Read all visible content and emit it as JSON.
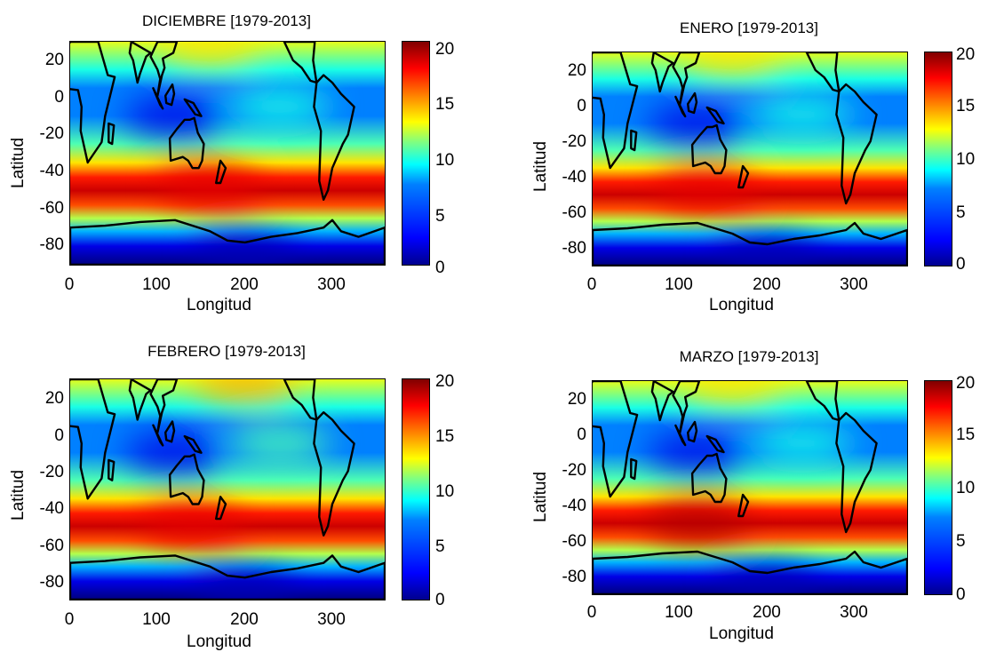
{
  "colorbar_ticks": [
    "0",
    "5",
    "10",
    "15",
    "20"
  ],
  "chart_data": [
    {
      "type": "heatmap",
      "title": "DICIEMBRE [1979-2013]",
      "xlabel": "Longitud",
      "ylabel": "Latitud",
      "xlim": [
        0,
        360
      ],
      "ylim": [
        -90,
        30
      ],
      "x_ticks": [
        "0",
        "100",
        "200",
        "300"
      ],
      "y_ticks": [
        "20",
        "0",
        "-20",
        "-40",
        "-60",
        "-80"
      ],
      "colorbar_range": [
        0,
        20
      ],
      "colormap": "jet",
      "features": [
        {
          "lon": 120,
          "lat": -10,
          "value": 2
        },
        {
          "lon": 240,
          "lat": -5,
          "value": 8
        },
        {
          "lon": 160,
          "lat": -48,
          "value": 18
        },
        {
          "lon": 160,
          "lat": 28,
          "value": 13
        },
        {
          "lon": 200,
          "lat": -85,
          "value": 1
        }
      ]
    },
    {
      "type": "heatmap",
      "title": "ENERO [1979-2013]",
      "xlabel": "Longitud",
      "ylabel": "Latitud",
      "xlim": [
        0,
        360
      ],
      "ylim": [
        -90,
        30
      ],
      "x_ticks": [
        "0",
        "100",
        "200",
        "300"
      ],
      "y_ticks": [
        "20",
        "0",
        "-20",
        "-40",
        "-60",
        "-80"
      ],
      "colorbar_range": [
        0,
        20
      ],
      "colormap": "jet",
      "features": [
        {
          "lon": 120,
          "lat": -10,
          "value": 2
        },
        {
          "lon": 240,
          "lat": -5,
          "value": 8
        },
        {
          "lon": 130,
          "lat": -48,
          "value": 18
        },
        {
          "lon": 160,
          "lat": 28,
          "value": 13
        },
        {
          "lon": 200,
          "lat": -85,
          "value": 1
        }
      ]
    },
    {
      "type": "heatmap",
      "title": "FEBRERO [1979-2013]",
      "xlabel": "Longitud",
      "ylabel": "Latitud",
      "xlim": [
        0,
        360
      ],
      "ylim": [
        -90,
        30
      ],
      "x_ticks": [
        "0",
        "100",
        "200",
        "300"
      ],
      "y_ticks": [
        "20",
        "0",
        "-20",
        "-40",
        "-60",
        "-80"
      ],
      "colorbar_range": [
        0,
        20
      ],
      "colormap": "jet",
      "features": [
        {
          "lon": 120,
          "lat": -10,
          "value": 2
        },
        {
          "lon": 240,
          "lat": -5,
          "value": 9
        },
        {
          "lon": 140,
          "lat": -50,
          "value": 18
        },
        {
          "lon": 200,
          "lat": 28,
          "value": 14
        },
        {
          "lon": 200,
          "lat": -85,
          "value": 1
        }
      ]
    },
    {
      "type": "heatmap",
      "title": "MARZO [1979-2013]",
      "xlabel": "Longitud",
      "ylabel": "Latitud",
      "xlim": [
        0,
        360
      ],
      "ylim": [
        -90,
        30
      ],
      "x_ticks": [
        "0",
        "100",
        "200",
        "300"
      ],
      "y_ticks": [
        "20",
        "0",
        "-20",
        "-40",
        "-60",
        "-80"
      ],
      "colorbar_range": [
        0,
        20
      ],
      "colormap": "jet",
      "features": [
        {
          "lon": 120,
          "lat": -10,
          "value": 2
        },
        {
          "lon": 240,
          "lat": -5,
          "value": 8
        },
        {
          "lon": 120,
          "lat": -50,
          "value": 19
        },
        {
          "lon": 160,
          "lat": 28,
          "value": 13
        },
        {
          "lon": 200,
          "lat": -85,
          "value": 1
        }
      ]
    }
  ]
}
